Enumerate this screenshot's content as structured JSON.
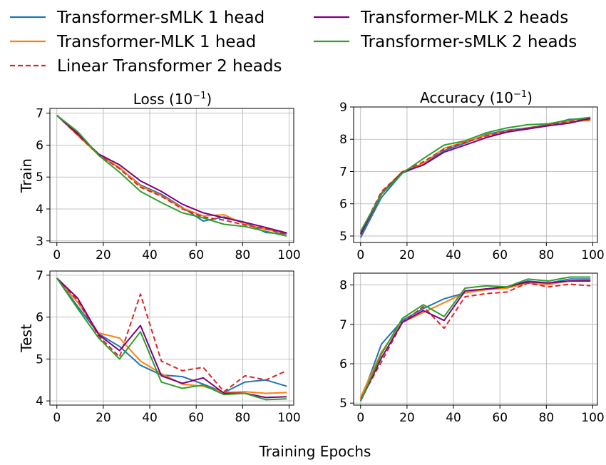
{
  "figure": {
    "legend": [
      {
        "name": "Transformer-sMLK 1 head",
        "color": "#1f77b4",
        "dash": false
      },
      {
        "name": "Transformer-MLK 1 head",
        "color": "#ff7f0e",
        "dash": false
      },
      {
        "name": "Linear Transformer 2 heads",
        "color": "#d62728",
        "dash": true
      },
      {
        "name": "Transformer-MLK 2 heads",
        "color": "#800080",
        "dash": false
      },
      {
        "name": "Transformer-sMLK 2 heads",
        "color": "#2ca02c",
        "dash": false
      }
    ],
    "xlabel": "Training Epochs",
    "row_labels": [
      "Train",
      "Test"
    ],
    "col_titles": [
      {
        "base": "Loss (10",
        "exp": "−1",
        "close": ")"
      },
      {
        "base": "Accuracy (10",
        "exp": "−1",
        "close": ")"
      }
    ]
  },
  "chart_data": [
    {
      "type": "line",
      "panel": "train-loss",
      "x": [
        0,
        9,
        18,
        27,
        36,
        45,
        54,
        63,
        72,
        81,
        90,
        99
      ],
      "xticks": [
        0,
        20,
        40,
        60,
        80,
        100
      ],
      "xlim": [
        -3,
        102
      ],
      "yticks": [
        3,
        4,
        5,
        6,
        7
      ],
      "ylim": [
        2.95,
        7.15
      ],
      "grid": true,
      "series": [
        {
          "name": "Transformer-sMLK 1 head",
          "values": [
            6.93,
            6.38,
            5.7,
            5.28,
            4.75,
            4.46,
            4.05,
            3.62,
            3.75,
            3.58,
            3.26,
            3.22
          ]
        },
        {
          "name": "Transformer-MLK 1 head",
          "values": [
            6.93,
            6.3,
            5.69,
            5.3,
            4.72,
            4.42,
            4.03,
            3.78,
            3.82,
            3.52,
            3.36,
            3.25
          ]
        },
        {
          "name": "Linear Transformer 2 heads",
          "values": [
            6.93,
            6.32,
            5.7,
            5.26,
            4.68,
            4.4,
            4.0,
            3.75,
            3.65,
            3.5,
            3.38,
            3.2
          ]
        },
        {
          "name": "Transformer-MLK 2 heads",
          "values": [
            6.93,
            6.35,
            5.72,
            5.38,
            4.88,
            4.55,
            4.15,
            3.88,
            3.72,
            3.58,
            3.42,
            3.25
          ]
        },
        {
          "name": "Transformer-sMLK 2 heads",
          "values": [
            6.93,
            6.42,
            5.68,
            5.15,
            4.55,
            4.2,
            3.88,
            3.72,
            3.52,
            3.45,
            3.3,
            3.15
          ]
        }
      ]
    },
    {
      "type": "line",
      "panel": "train-accuracy",
      "x": [
        0,
        9,
        18,
        27,
        36,
        45,
        54,
        63,
        72,
        81,
        90,
        99
      ],
      "xticks": [
        0,
        20,
        40,
        60,
        80,
        100
      ],
      "xlim": [
        -3,
        102
      ],
      "yticks": [
        5,
        6,
        7,
        8,
        9
      ],
      "ylim": [
        4.8,
        9.0
      ],
      "grid": true,
      "series": [
        {
          "name": "Transformer-sMLK 1 head",
          "values": [
            4.95,
            6.2,
            6.95,
            7.22,
            7.65,
            7.88,
            8.15,
            8.28,
            8.35,
            8.45,
            8.62,
            8.62
          ]
        },
        {
          "name": "Transformer-MLK 1 head",
          "values": [
            5.05,
            6.35,
            7.0,
            7.25,
            7.72,
            7.92,
            8.12,
            8.25,
            8.32,
            8.42,
            8.55,
            8.58
          ]
        },
        {
          "name": "Linear Transformer 2 heads",
          "values": [
            5.1,
            6.38,
            6.98,
            7.3,
            7.7,
            7.9,
            8.1,
            8.25,
            8.35,
            8.45,
            8.55,
            8.62
          ]
        },
        {
          "name": "Transformer-MLK 2 heads",
          "values": [
            5.05,
            6.3,
            6.98,
            7.2,
            7.6,
            7.82,
            8.05,
            8.22,
            8.32,
            8.42,
            8.5,
            8.65
          ]
        },
        {
          "name": "Transformer-sMLK 2 heads",
          "values": [
            5.15,
            6.3,
            6.95,
            7.4,
            7.82,
            7.95,
            8.2,
            8.35,
            8.45,
            8.48,
            8.6,
            8.68
          ]
        }
      ]
    },
    {
      "type": "line",
      "panel": "test-loss",
      "x": [
        0,
        9,
        18,
        27,
        36,
        45,
        54,
        63,
        72,
        81,
        90,
        99
      ],
      "xticks": [
        0,
        20,
        40,
        60,
        80,
        100
      ],
      "xlim": [
        -3,
        102
      ],
      "yticks": [
        4,
        5,
        6,
        7
      ],
      "ylim": [
        3.9,
        7.1
      ],
      "grid": true,
      "series": [
        {
          "name": "Transformer-sMLK 1 head",
          "values": [
            6.93,
            6.25,
            5.6,
            5.3,
            4.85,
            4.62,
            4.58,
            4.4,
            4.2,
            4.45,
            4.5,
            4.35
          ]
        },
        {
          "name": "Transformer-MLK 1 head",
          "values": [
            6.93,
            6.35,
            5.62,
            5.5,
            4.95,
            4.65,
            4.4,
            4.35,
            4.2,
            4.22,
            4.18,
            4.2
          ]
        },
        {
          "name": "Linear Transformer 2 heads",
          "values": [
            6.93,
            6.4,
            5.55,
            5.05,
            6.55,
            4.95,
            4.72,
            4.8,
            4.22,
            4.6,
            4.5,
            4.72
          ]
        },
        {
          "name": "Transformer-MLK 2 heads",
          "values": [
            6.93,
            6.45,
            5.58,
            5.2,
            5.8,
            4.6,
            4.42,
            4.55,
            4.18,
            4.18,
            4.08,
            4.1
          ]
        },
        {
          "name": "Transformer-sMLK 2 heads",
          "values": [
            6.93,
            6.2,
            5.5,
            5.0,
            5.65,
            4.45,
            4.3,
            4.38,
            4.15,
            4.18,
            4.03,
            4.05
          ]
        }
      ]
    },
    {
      "type": "line",
      "panel": "test-accuracy",
      "x": [
        0,
        9,
        18,
        27,
        36,
        45,
        54,
        63,
        72,
        81,
        90,
        99
      ],
      "xticks": [
        0,
        20,
        40,
        60,
        80,
        100
      ],
      "xlim": [
        -3,
        102
      ],
      "yticks": [
        5,
        6,
        7,
        8
      ],
      "ylim": [
        4.95,
        8.3
      ],
      "grid": true,
      "series": [
        {
          "name": "Transformer-sMLK 1 head",
          "values": [
            5.05,
            6.5,
            7.1,
            7.4,
            7.65,
            7.8,
            7.9,
            7.95,
            8.1,
            8.05,
            8.15,
            8.15
          ]
        },
        {
          "name": "Transformer-MLK 1 head",
          "values": [
            5.15,
            6.3,
            7.05,
            7.3,
            7.55,
            7.8,
            7.88,
            7.92,
            8.05,
            8.02,
            8.1,
            8.12
          ]
        },
        {
          "name": "Linear Transformer 2 heads",
          "values": [
            5.1,
            6.05,
            7.05,
            7.45,
            6.9,
            7.7,
            7.78,
            7.82,
            8.05,
            7.95,
            8.02,
            7.98
          ]
        },
        {
          "name": "Transformer-MLK 2 heads",
          "values": [
            5.05,
            6.15,
            7.05,
            7.35,
            7.1,
            7.85,
            7.9,
            7.95,
            8.08,
            8.05,
            8.1,
            8.1
          ]
        },
        {
          "name": "Transformer-sMLK 2 heads",
          "values": [
            5.05,
            6.25,
            7.15,
            7.5,
            7.2,
            7.92,
            7.98,
            7.95,
            8.15,
            8.1,
            8.2,
            8.2
          ]
        }
      ]
    }
  ]
}
